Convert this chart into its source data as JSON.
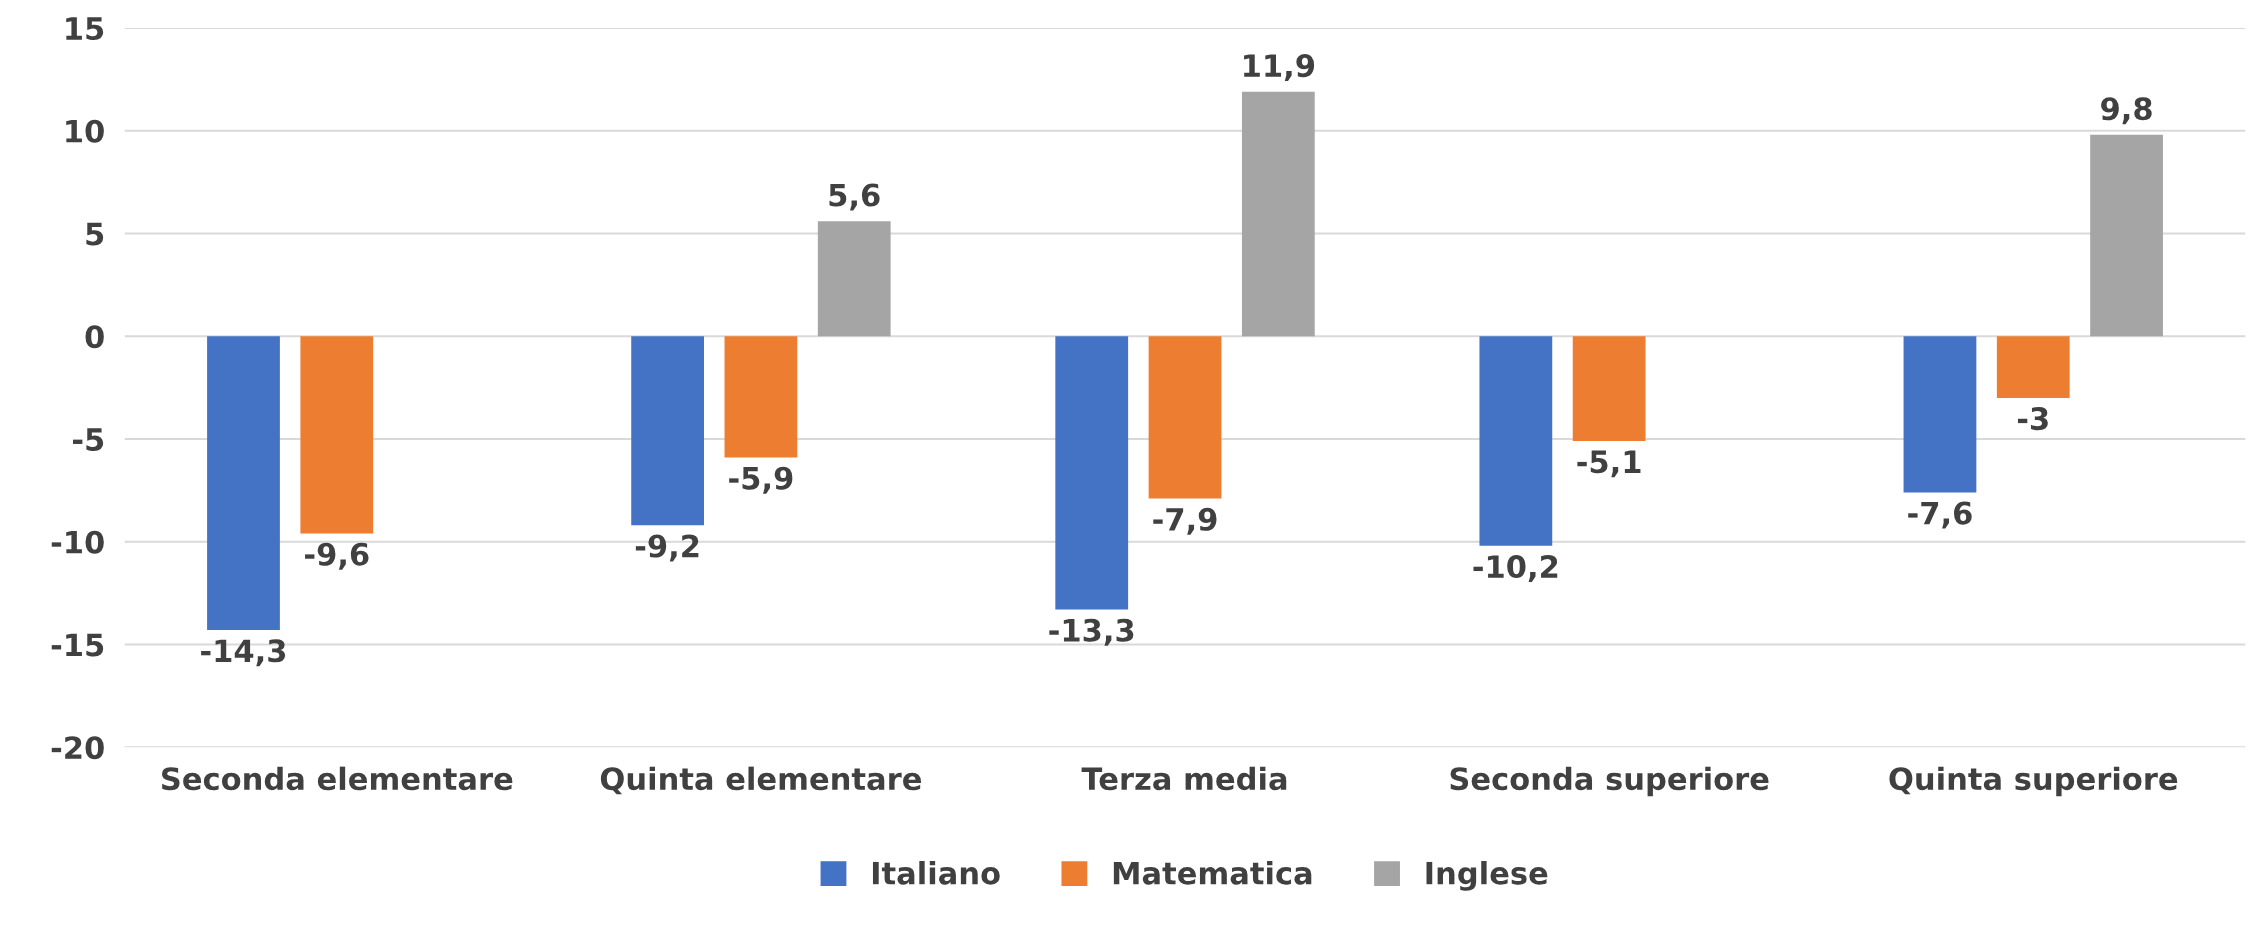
{
  "chart_data": {
    "type": "bar",
    "categories": [
      "Seconda elementare",
      "Quinta elementare",
      "Terza media",
      "Seconda superiore",
      "Quinta superiore"
    ],
    "series": [
      {
        "name": "Italiano",
        "color": "#4472c4",
        "values": [
          -14.3,
          -9.2,
          -13.3,
          -10.2,
          -7.6
        ],
        "value_labels": [
          "-14,3",
          "-9,2",
          "-13,3",
          "-10,2",
          "-7,6"
        ]
      },
      {
        "name": "Matematica",
        "color": "#ed7d31",
        "values": [
          -9.6,
          -5.9,
          -7.9,
          -5.1,
          -3
        ],
        "value_labels": [
          "-9,6",
          "-5,9",
          "-7,9",
          "-5,1",
          "-3"
        ]
      },
      {
        "name": "Inglese",
        "color": "#a5a5a5",
        "values": [
          null,
          5.6,
          11.9,
          null,
          9.8
        ],
        "value_labels": [
          null,
          "5,6",
          "11,9",
          null,
          "9,8"
        ]
      }
    ],
    "ylim": [
      -20,
      15
    ],
    "yticks": [
      -20,
      -15,
      -10,
      -5,
      0,
      5,
      10,
      15
    ],
    "grid": "y",
    "legend": "bottom"
  }
}
